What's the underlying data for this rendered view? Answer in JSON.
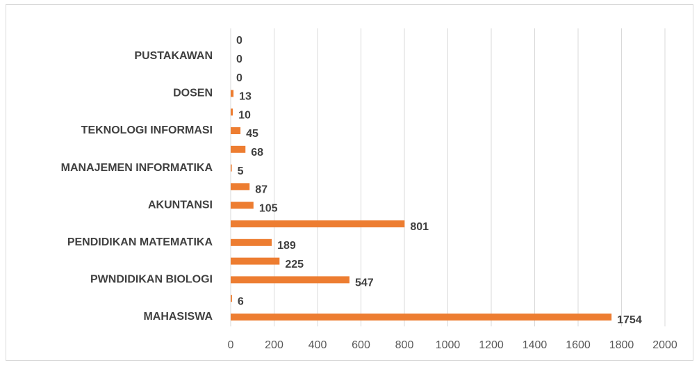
{
  "chart_data": {
    "type": "barh",
    "categories": [
      "MAHASISWA",
      null,
      "PWNDIDIKAN BIOLOGI",
      null,
      "PENDIDIKAN MATEMATIKA",
      null,
      "AKUNTANSI",
      null,
      "MANAJEMEN INFORMATIKA",
      null,
      "TEKNOLOGI INFORMASI",
      null,
      "DOSEN",
      null,
      "PUSTAKAWAN",
      null
    ],
    "values": [
      1754,
      6,
      547,
      225,
      189,
      801,
      105,
      87,
      5,
      68,
      45,
      10,
      13,
      0,
      0,
      0
    ],
    "color": "#ed7d31",
    "xlim": [
      0,
      2000
    ],
    "xticks": [
      0,
      200,
      400,
      600,
      800,
      1000,
      1200,
      1400,
      1600,
      1800,
      2000
    ],
    "grid": true
  }
}
